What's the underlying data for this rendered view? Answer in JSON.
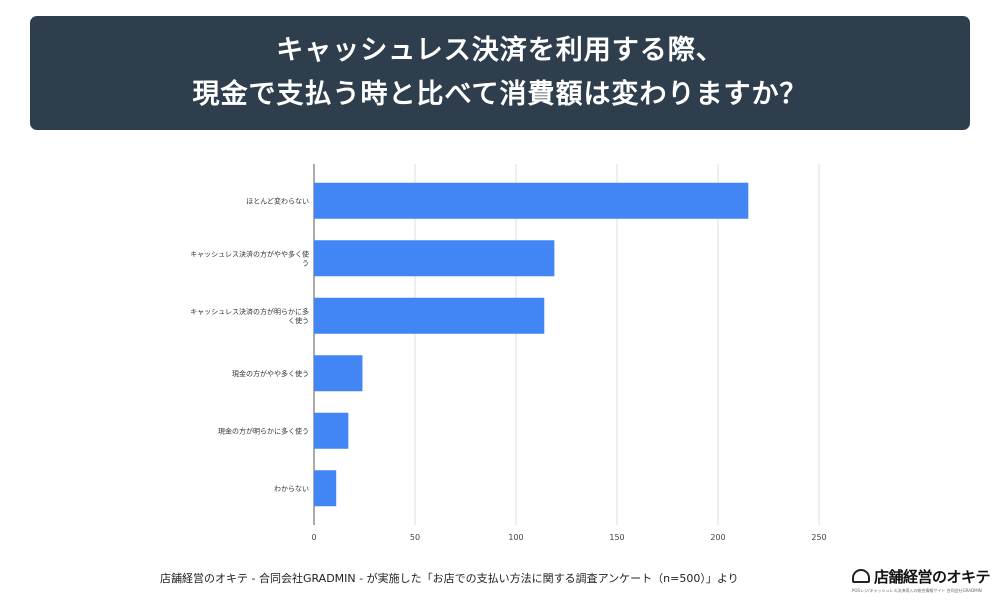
{
  "title": {
    "line1": "キャッシュレス決済を利用する際、",
    "line2": "現金で支払う時と比べて消費額は変わりますか？"
  },
  "chart_data": {
    "type": "bar",
    "orientation": "horizontal",
    "categories": [
      "ほとんど変わらない",
      "キャッシュレス決済の方がやや多く使う",
      "キャッシュレス決済の方が明らかに多く使う",
      "現金の方がやや多く使う",
      "現金の方が明らかに多く使う",
      "わからない"
    ],
    "category_label_lines": [
      [
        "ほとんど変わらない"
      ],
      [
        "キャッシュレス決済の方がやや多く使",
        "う"
      ],
      [
        "キャッシュレス決済の方が明らかに多",
        "く使う"
      ],
      [
        "現金の方がやや多く使う"
      ],
      [
        "現金の方が明らかに多く使う"
      ],
      [
        "わからない"
      ]
    ],
    "values": [
      215,
      119,
      114,
      24,
      17,
      11
    ],
    "xlim": [
      0,
      250
    ],
    "xticks": [
      0,
      50,
      100,
      150,
      200,
      250
    ],
    "bar_color": "#4285f4",
    "grid": true,
    "title": "",
    "xlabel": "",
    "ylabel": ""
  },
  "footer": {
    "source": "店舗経営のオキテ - 合同会社GRADMIN - が実施した「お店での支払い方法に関する調査アンケート（n=500）」より"
  },
  "logo": {
    "text": "店舗経営のオキテ",
    "sub": "POSレジ/キャッシュレス決済導入の総合情報サイト 合同会社GRADMIN"
  }
}
